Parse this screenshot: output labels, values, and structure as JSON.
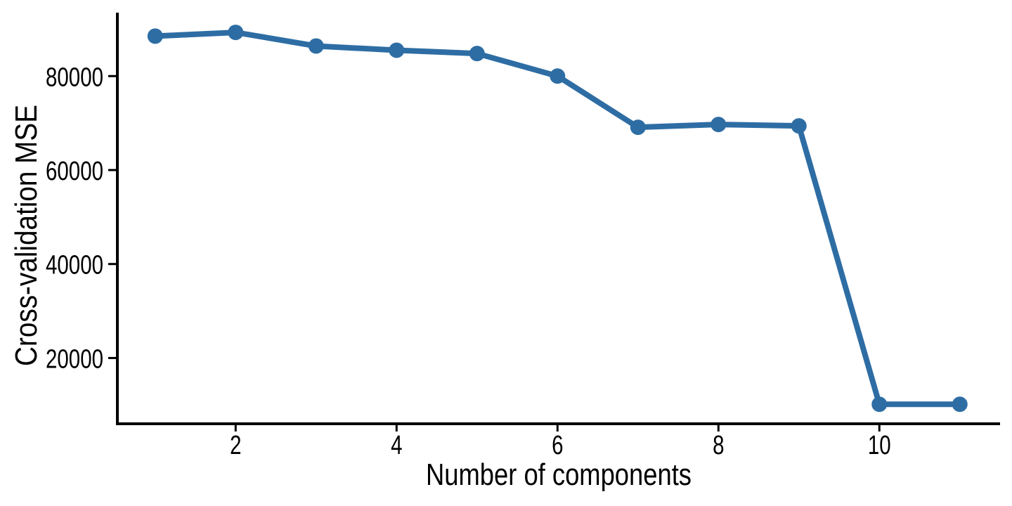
{
  "chart_data": {
    "type": "line",
    "title": "",
    "xlabel": "Number of components",
    "ylabel": "Cross-validation MSE",
    "x": [
      1,
      2,
      3,
      4,
      5,
      6,
      7,
      8,
      9,
      10,
      11
    ],
    "values": [
      88500,
      89300,
      86400,
      85500,
      84800,
      80000,
      69100,
      69700,
      69400,
      10150,
      10150
    ],
    "x_ticks": [
      2,
      4,
      6,
      8,
      10
    ],
    "y_ticks": [
      20000,
      40000,
      60000,
      80000
    ],
    "xlim": [
      0.53,
      11.5
    ],
    "ylim": [
      6000,
      93500
    ],
    "grid": "off",
    "legend": "none",
    "line_color": "#2e6da4",
    "axis_color": "#000000",
    "marker": "circle"
  }
}
